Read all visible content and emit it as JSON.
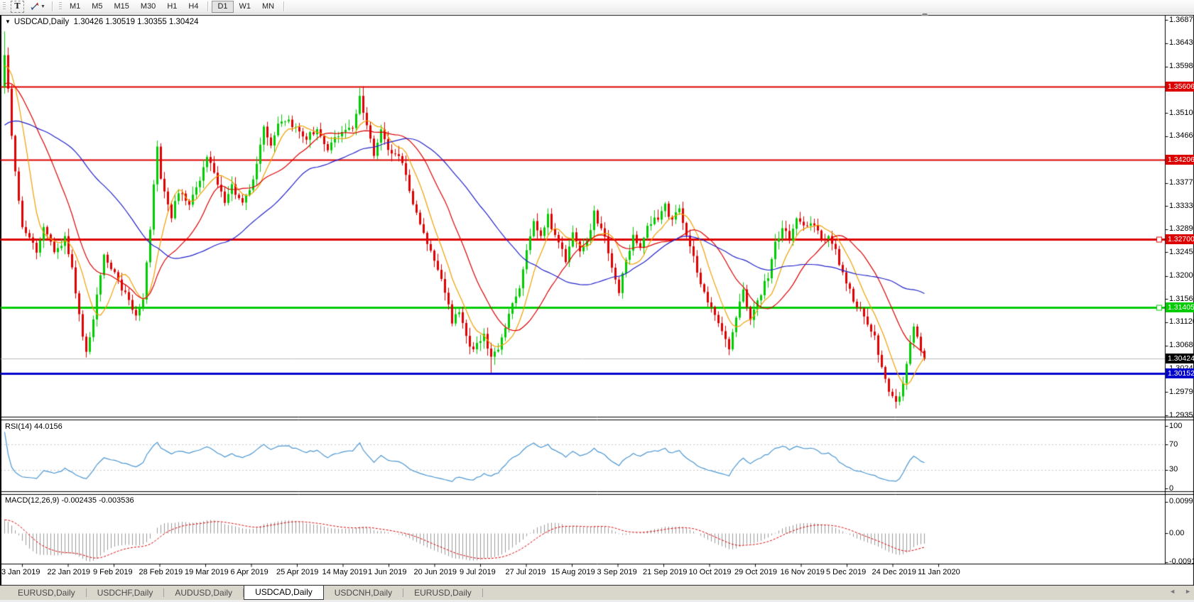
{
  "toolbar": {
    "text_tool_label": "T",
    "caret": "▼",
    "timeframes": [
      {
        "label": "M1",
        "active": false
      },
      {
        "label": "M5",
        "active": false
      },
      {
        "label": "M15",
        "active": false
      },
      {
        "label": "M30",
        "active": false
      },
      {
        "label": "H1",
        "active": false
      },
      {
        "label": "H4",
        "active": false
      },
      {
        "label": "D1",
        "active": true
      },
      {
        "label": "W1",
        "active": false
      },
      {
        "label": "MN",
        "active": false
      }
    ]
  },
  "chart_header": {
    "caret": "▼",
    "symbol": "USDCAD,Daily",
    "values": "1.30426 1.30519 1.30355 1.30424"
  },
  "chart_data": {
    "type": "candlestick",
    "symbol": "USDCAD",
    "timeframe": "Daily",
    "last_ohlc": {
      "open": 1.30426,
      "high": 1.30519,
      "low": 1.30355,
      "close": 1.30424
    },
    "bars": 260,
    "candle_up_color": "#00cc00",
    "candle_down_color": "#e00000",
    "price_axis": {
      "ticks": [
        "1.36870",
        "1.36430",
        "1.35980",
        "1.35540",
        "1.35100",
        "1.34660",
        "1.33770",
        "1.33330",
        "1.32890",
        "1.32450",
        "1.32000",
        "1.31560",
        "1.31120",
        "1.30680",
        "1.30240",
        "1.29790",
        "1.29350"
      ]
    },
    "hlines": [
      {
        "price": 1.35606,
        "label": "1.35606",
        "color": "#dd0000",
        "width": 2,
        "handle": false
      },
      {
        "price": 1.34206,
        "label": "1.34206",
        "color": "#dd0000",
        "width": 2,
        "handle": false
      },
      {
        "price": 1.327,
        "label": "1.32700",
        "color": "#dd0000",
        "width": 3,
        "handle": true
      },
      {
        "price": 1.31405,
        "label": "1.31405",
        "color": "#00cc00",
        "width": 3,
        "handle": true
      },
      {
        "price": 1.30152,
        "label": "1.30152",
        "color": "#0000cc",
        "width": 3,
        "handle": false
      }
    ],
    "current_price": {
      "value": 1.30424,
      "label": "1.30424",
      "line_color": "#bcbcbc",
      "label_bg": "#000000"
    },
    "moving_averages": [
      {
        "period": 8,
        "color": "#f0a000"
      },
      {
        "period": 20,
        "color": "#dd0000"
      },
      {
        "period": 45,
        "color": "#2222cc"
      }
    ],
    "first_open": 1.356,
    "warmup": {
      "bars": 60,
      "start": 1.325,
      "end": 1.362
    },
    "close_waypoints": [
      [
        0,
        1.362
      ],
      [
        1,
        1.356
      ],
      [
        2,
        1.347
      ],
      [
        4,
        1.334
      ],
      [
        5,
        1.3295
      ],
      [
        9,
        1.3245
      ],
      [
        11,
        1.329
      ],
      [
        14,
        1.3248
      ],
      [
        17,
        1.327
      ],
      [
        19,
        1.3215
      ],
      [
        22,
        1.3085
      ],
      [
        23,
        1.3052
      ],
      [
        25,
        1.312
      ],
      [
        28,
        1.3245
      ],
      [
        31,
        1.3205
      ],
      [
        34,
        1.3165
      ],
      [
        37,
        1.3122
      ],
      [
        39,
        1.3155
      ],
      [
        41,
        1.329
      ],
      [
        43,
        1.345
      ],
      [
        44,
        1.3385
      ],
      [
        47,
        1.3315
      ],
      [
        49,
        1.336
      ],
      [
        52,
        1.3335
      ],
      [
        55,
        1.338
      ],
      [
        57,
        1.343
      ],
      [
        59,
        1.339
      ],
      [
        62,
        1.3345
      ],
      [
        64,
        1.3372
      ],
      [
        67,
        1.3335
      ],
      [
        70,
        1.338
      ],
      [
        73,
        1.3478
      ],
      [
        75,
        1.3452
      ],
      [
        78,
        1.35
      ],
      [
        82,
        1.3482
      ],
      [
        85,
        1.3462
      ],
      [
        88,
        1.3482
      ],
      [
        91,
        1.3442
      ],
      [
        94,
        1.347
      ],
      [
        98,
        1.3482
      ],
      [
        100,
        1.3538
      ],
      [
        101,
        1.3512
      ],
      [
        104,
        1.3432
      ],
      [
        106,
        1.3478
      ],
      [
        108,
        1.344
      ],
      [
        112,
        1.342
      ],
      [
        115,
        1.334
      ],
      [
        118,
        1.3282
      ],
      [
        121,
        1.3232
      ],
      [
        124,
        1.3172
      ],
      [
        126,
        1.3112
      ],
      [
        128,
        1.3132
      ],
      [
        130,
        1.3082
      ],
      [
        132,
        1.3062
      ],
      [
        135,
        1.3092
      ],
      [
        137,
        1.3042
      ],
      [
        139,
        1.3062
      ],
      [
        142,
        1.3122
      ],
      [
        145,
        1.3182
      ],
      [
        147,
        1.3252
      ],
      [
        149,
        1.3302
      ],
      [
        151,
        1.3282
      ],
      [
        153,
        1.3312
      ],
      [
        156,
        1.3262
      ],
      [
        158,
        1.3232
      ],
      [
        160,
        1.3282
      ],
      [
        162,
        1.3242
      ],
      [
        164,
        1.3262
      ],
      [
        166,
        1.3322
      ],
      [
        169,
        1.3272
      ],
      [
        171,
        1.3212
      ],
      [
        173,
        1.3172
      ],
      [
        175,
        1.3232
      ],
      [
        177,
        1.3272
      ],
      [
        179,
        1.3252
      ],
      [
        181,
        1.3292
      ],
      [
        184,
        1.3312
      ],
      [
        186,
        1.3332
      ],
      [
        188,
        1.3302
      ],
      [
        190,
        1.3332
      ],
      [
        192,
        1.3282
      ],
      [
        194,
        1.3232
      ],
      [
        196,
        1.3182
      ],
      [
        199,
        1.3142
      ],
      [
        202,
        1.3092
      ],
      [
        204,
        1.3062
      ],
      [
        206,
        1.3122
      ],
      [
        208,
        1.3172
      ],
      [
        210,
        1.3112
      ],
      [
        212,
        1.3152
      ],
      [
        215,
        1.3202
      ],
      [
        217,
        1.3262
      ],
      [
        219,
        1.3292
      ],
      [
        221,
        1.3272
      ],
      [
        223,
        1.3312
      ],
      [
        225,
        1.3292
      ],
      [
        227,
        1.3302
      ],
      [
        230,
        1.3272
      ],
      [
        232,
        1.3282
      ],
      [
        234,
        1.3252
      ],
      [
        236,
        1.3202
      ],
      [
        238,
        1.3172
      ],
      [
        240,
        1.3142
      ],
      [
        242,
        1.3122
      ],
      [
        245,
        1.3082
      ],
      [
        247,
        1.3022
      ],
      [
        249,
        1.2982
      ],
      [
        251,
        1.2962
      ],
      [
        253,
        1.2992
      ],
      [
        255,
        1.3072
      ],
      [
        256,
        1.3102
      ],
      [
        258,
        1.3062
      ],
      [
        259,
        1.30424
      ]
    ],
    "spikes": {
      "0": {
        "high": 1.3665
      },
      "101": {
        "high": 1.35606
      },
      "137": {
        "low": 1.3016
      },
      "251": {
        "low": 1.2948
      }
    },
    "x_dates": [
      "3 Jan 2019",
      "22 Jan 2019",
      "9 Feb 2019",
      "28 Feb 2019",
      "19 Mar 2019",
      "6 Apr 2019",
      "25 Apr 2019",
      "14 May 2019",
      "1 Jun 2019",
      "20 Jun 2019",
      "9 Jul 2019",
      "27 Jul 2019",
      "15 Aug 2019",
      "3 Sep 2019",
      "21 Sep 2019",
      "10 Oct 2019",
      "29 Oct 2019",
      "16 Nov 2019",
      "5 Dec 2019",
      "24 Dec 2019",
      "11 Jan 2020"
    ],
    "rsi": {
      "name": "RSI(14)",
      "value": "44.0156",
      "period": 14,
      "upper_level": 70,
      "lower_level": 30,
      "max": 100,
      "min": 0,
      "color": "#4a96d2",
      "level_color": "#c8c8c8",
      "axis_labels": [
        "100",
        "70",
        "30",
        "0"
      ],
      "axis_values": [
        100,
        70,
        30,
        0
      ]
    },
    "macd": {
      "name": "MACD(12,26,9)",
      "main_value": "-0.002435",
      "signal_value": "-0.003536",
      "fast": 12,
      "slow": 26,
      "signal": 9,
      "hist_color": "#9a9a9a",
      "signal_color": "#dd0000",
      "axis_labels": [
        "0.009975",
        "0.00",
        "-0.00915"
      ],
      "axis_values": [
        0.009975,
        0,
        -0.00915
      ]
    }
  },
  "tabs": {
    "items": [
      {
        "label": "EURUSD,Daily",
        "active": false
      },
      {
        "label": "USDCHF,Daily",
        "active": false
      },
      {
        "label": "AUDUSD,Daily",
        "active": false
      },
      {
        "label": "USDCAD,Daily",
        "active": true
      },
      {
        "label": "USDCNH,Daily",
        "active": false
      },
      {
        "label": "EURUSD,Daily",
        "active": false
      }
    ],
    "scroll_left": "◄",
    "scroll_right": "►"
  }
}
